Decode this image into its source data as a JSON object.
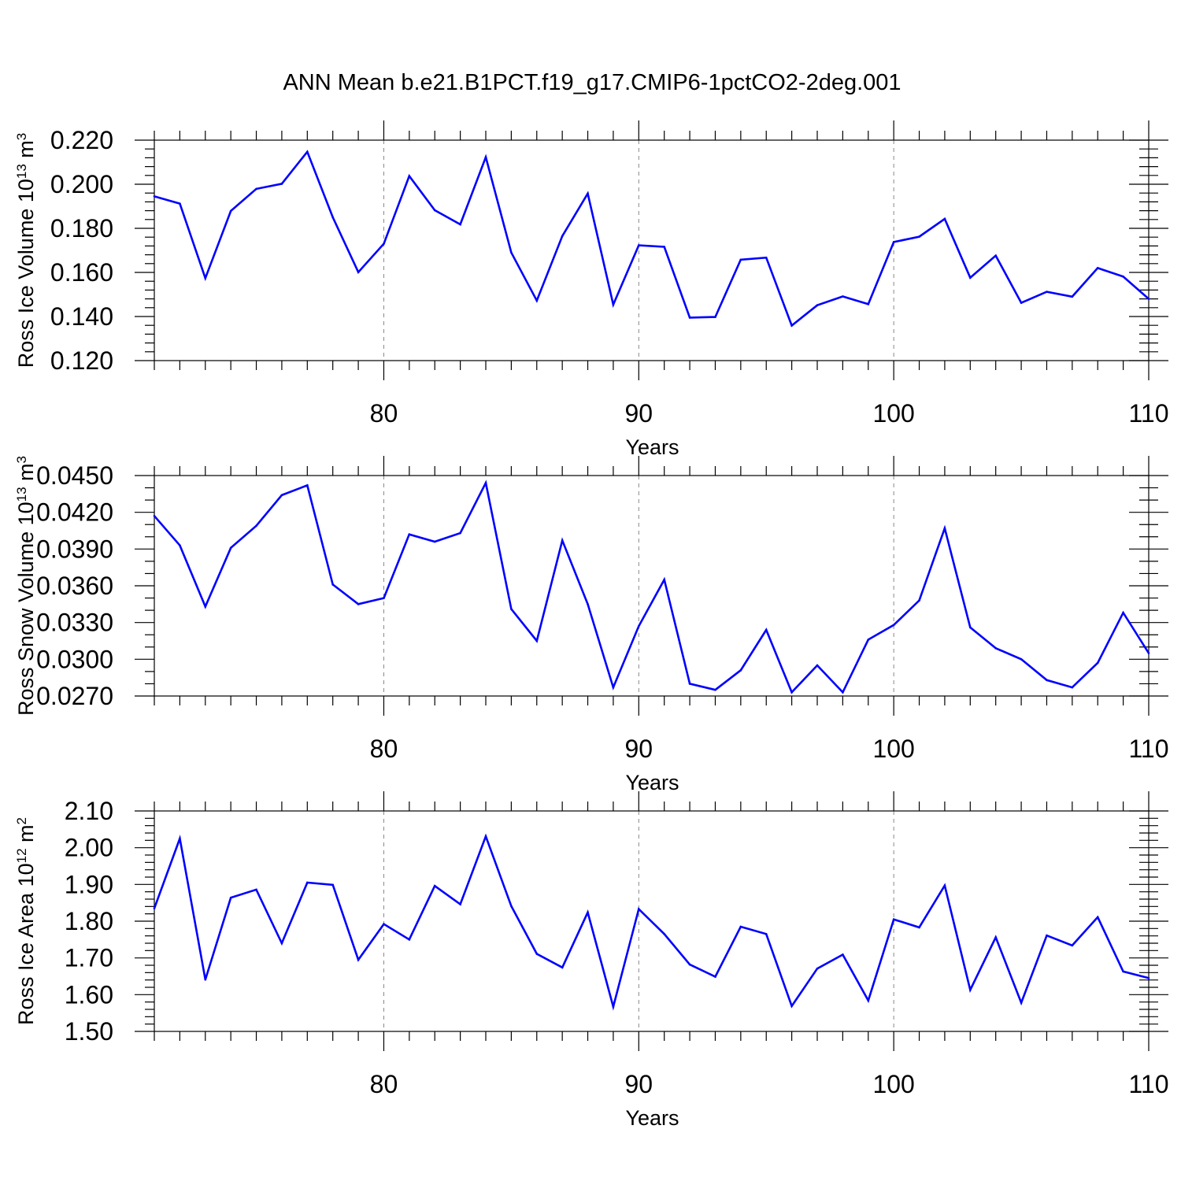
{
  "title": "ANN Mean b.e21.B1PCT.f19_g17.CMIP6-1pctCO2-2deg.001",
  "colors": {
    "line": "#0000ff",
    "axis": "#000000",
    "grid": "#888888"
  },
  "chart_data": [
    {
      "type": "line",
      "name": "ross-ice-volume",
      "ylabel": {
        "prefix": "Ross Ice Volume 10",
        "exp": "13",
        "unit": " m",
        "unit_exp": "3"
      },
      "xlabel": "Years",
      "xlim": [
        71,
        110
      ],
      "ylim": [
        0.12,
        0.22
      ],
      "yticks": [
        0.12,
        0.14,
        0.16,
        0.18,
        0.2,
        0.22
      ],
      "yticklabels": [
        "0.120",
        "0.140",
        "0.160",
        "0.180",
        "0.200",
        "0.220"
      ],
      "yminor": 5,
      "xticks": [
        80,
        90,
        100,
        110
      ],
      "xticklabels": [
        "80",
        "90",
        "100",
        "110"
      ],
      "xminor": [
        71,
        72,
        73,
        74,
        75,
        76,
        77,
        78,
        79,
        81,
        82,
        83,
        84,
        85,
        86,
        87,
        88,
        89,
        91,
        92,
        93,
        94,
        95,
        96,
        97,
        98,
        99,
        101,
        102,
        103,
        104,
        105,
        106,
        107,
        108,
        109
      ],
      "gridx": [
        80,
        90,
        100
      ],
      "x": [
        71,
        72,
        73,
        74,
        75,
        76,
        77,
        78,
        79,
        80,
        81,
        82,
        83,
        84,
        85,
        86,
        87,
        88,
        89,
        90,
        91,
        92,
        93,
        94,
        95,
        96,
        97,
        98,
        99,
        100,
        101,
        102,
        103,
        104,
        105,
        106,
        107,
        108,
        109,
        110
      ],
      "values": [
        0.1945,
        0.1912,
        0.1574,
        0.1879,
        0.1979,
        0.2002,
        0.2147,
        0.185,
        0.1601,
        0.173,
        0.2037,
        0.1882,
        0.1818,
        0.2123,
        0.169,
        0.1472,
        0.1765,
        0.1958,
        0.1454,
        0.1723,
        0.1716,
        0.1395,
        0.1398,
        0.1658,
        0.1667,
        0.1359,
        0.1451,
        0.1491,
        0.1456,
        0.1738,
        0.1762,
        0.1843,
        0.1576,
        0.1676,
        0.1462,
        0.1512,
        0.149,
        0.162,
        0.1581,
        0.148
      ]
    },
    {
      "type": "line",
      "name": "ross-snow-volume",
      "ylabel": {
        "prefix": "Ross Snow Volume 10",
        "exp": "13",
        "unit": " m",
        "unit_exp": "3"
      },
      "xlabel": "Years",
      "xlim": [
        71,
        110
      ],
      "ylim": [
        0.027,
        0.045
      ],
      "yticks": [
        0.027,
        0.03,
        0.033,
        0.036,
        0.039,
        0.042,
        0.045
      ],
      "yticklabels": [
        "0.0270",
        "0.0300",
        "0.0330",
        "0.0360",
        "0.0390",
        "0.0420",
        "0.0450"
      ],
      "yminor": 3,
      "xticks": [
        80,
        90,
        100,
        110
      ],
      "xticklabels": [
        "80",
        "90",
        "100",
        "110"
      ],
      "xminor": [
        71,
        72,
        73,
        74,
        75,
        76,
        77,
        78,
        79,
        81,
        82,
        83,
        84,
        85,
        86,
        87,
        88,
        89,
        91,
        92,
        93,
        94,
        95,
        96,
        97,
        98,
        99,
        101,
        102,
        103,
        104,
        105,
        106,
        107,
        108,
        109
      ],
      "gridx": [
        80,
        90,
        100
      ],
      "x": [
        71,
        72,
        73,
        74,
        75,
        76,
        77,
        78,
        79,
        80,
        81,
        82,
        83,
        84,
        85,
        86,
        87,
        88,
        89,
        90,
        91,
        92,
        93,
        94,
        95,
        96,
        97,
        98,
        99,
        100,
        101,
        102,
        103,
        104,
        105,
        106,
        107,
        108,
        109,
        110
      ],
      "values": [
        0.0417,
        0.0393,
        0.0343,
        0.0391,
        0.0409,
        0.0434,
        0.0442,
        0.0361,
        0.0345,
        0.035,
        0.0402,
        0.0396,
        0.0403,
        0.0444,
        0.0341,
        0.0315,
        0.0397,
        0.0345,
        0.0277,
        0.0327,
        0.0365,
        0.028,
        0.0275,
        0.0291,
        0.0324,
        0.0273,
        0.0295,
        0.0273,
        0.0316,
        0.0328,
        0.0348,
        0.0407,
        0.0326,
        0.0309,
        0.03,
        0.0283,
        0.0277,
        0.0297,
        0.0338,
        0.0305
      ]
    },
    {
      "type": "line",
      "name": "ross-ice-area",
      "ylabel": {
        "prefix": "Ross Ice Area 10",
        "exp": "12",
        "unit": " m",
        "unit_exp": "2"
      },
      "xlabel": "Years",
      "xlim": [
        71,
        110
      ],
      "ylim": [
        1.5,
        2.1
      ],
      "yticks": [
        1.5,
        1.6,
        1.7,
        1.8,
        1.9,
        2.0,
        2.1
      ],
      "yticklabels": [
        "1.50",
        "1.60",
        "1.70",
        "1.80",
        "1.90",
        "2.00",
        "2.10"
      ],
      "yminor": 5,
      "xticks": [
        80,
        90,
        100,
        110
      ],
      "xticklabels": [
        "80",
        "90",
        "100",
        "110"
      ],
      "xminor": [
        71,
        72,
        73,
        74,
        75,
        76,
        77,
        78,
        79,
        81,
        82,
        83,
        84,
        85,
        86,
        87,
        88,
        89,
        91,
        92,
        93,
        94,
        95,
        96,
        97,
        98,
        99,
        101,
        102,
        103,
        104,
        105,
        106,
        107,
        108,
        109
      ],
      "gridx": [
        80,
        90,
        100
      ],
      "x": [
        71,
        72,
        73,
        74,
        75,
        76,
        77,
        78,
        79,
        80,
        81,
        82,
        83,
        84,
        85,
        86,
        87,
        88,
        89,
        90,
        91,
        92,
        93,
        94,
        95,
        96,
        97,
        98,
        99,
        100,
        101,
        102,
        103,
        104,
        105,
        106,
        107,
        108,
        109,
        110
      ],
      "values": [
        1.835,
        2.025,
        1.641,
        1.864,
        1.886,
        1.74,
        1.905,
        1.899,
        1.695,
        1.792,
        1.75,
        1.896,
        1.846,
        2.031,
        1.841,
        1.711,
        1.674,
        1.824,
        1.567,
        1.833,
        1.765,
        1.682,
        1.649,
        1.785,
        1.765,
        1.569,
        1.671,
        1.709,
        1.584,
        1.805,
        1.783,
        1.897,
        1.613,
        1.756,
        1.578,
        1.761,
        1.734,
        1.811,
        1.663,
        1.645
      ]
    }
  ]
}
